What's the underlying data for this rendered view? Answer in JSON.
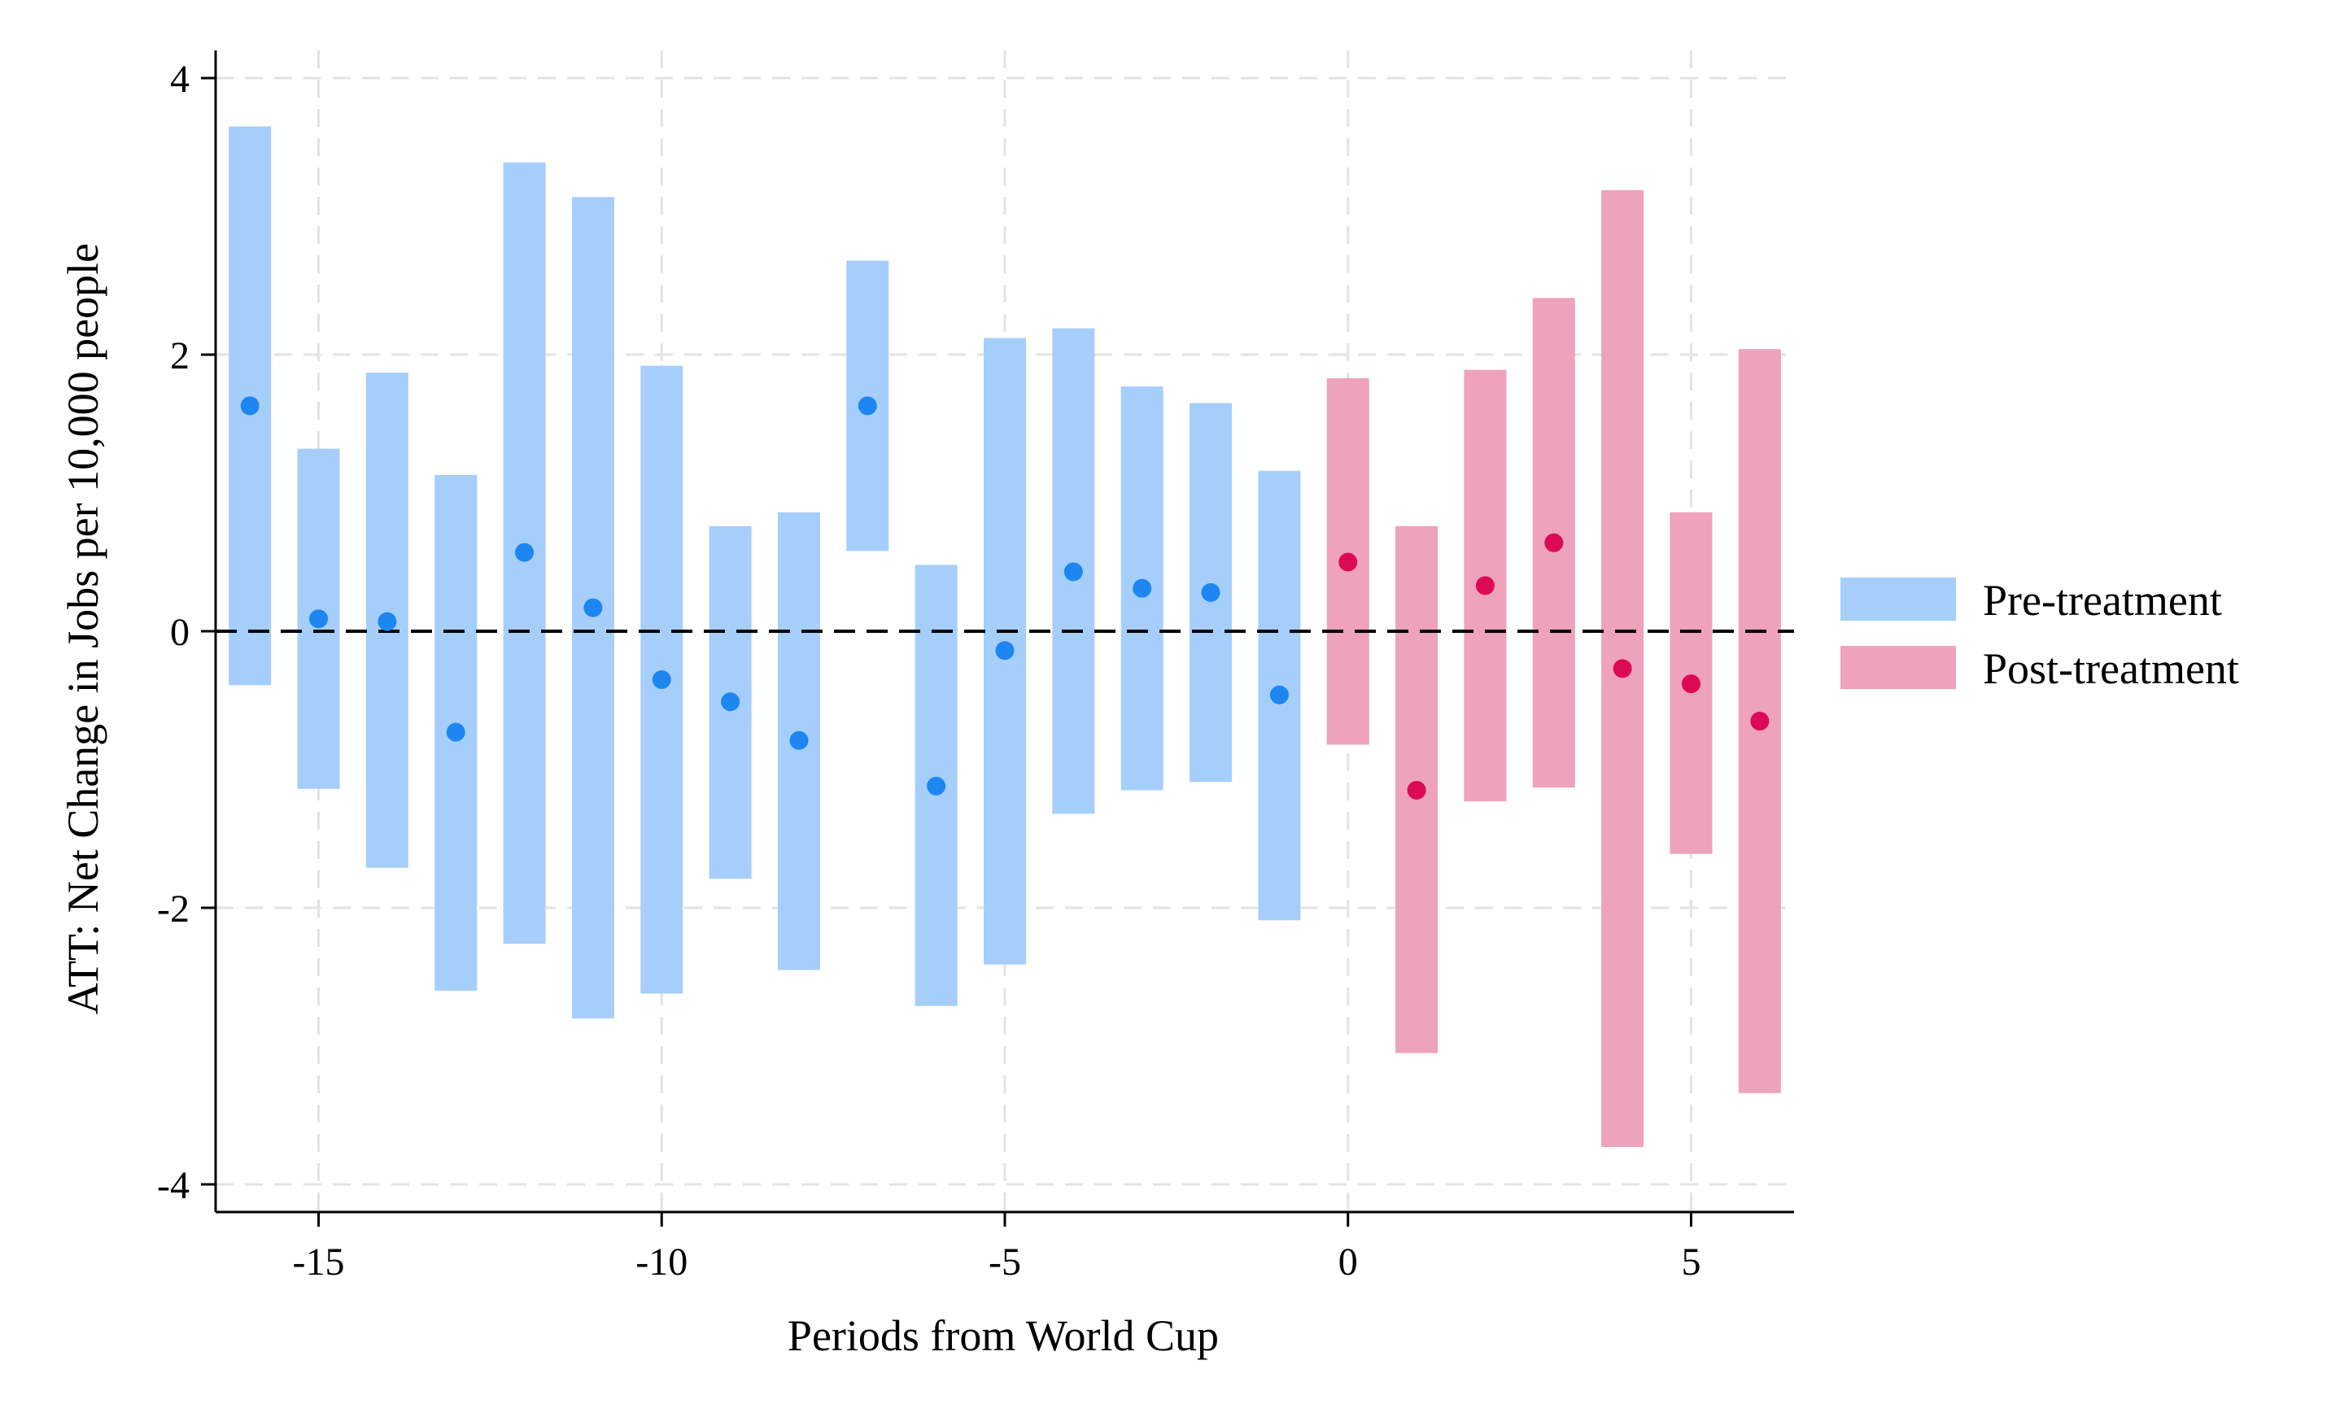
{
  "chart_data": {
    "type": "scatter",
    "subtype": "point estimates with confidence interval bars",
    "xlabel": "Periods from World Cup",
    "ylabel": "ATT: Net Change in Jobs per 10,000 people",
    "xlim": [
      -16.5,
      6.5
    ],
    "ylim": [
      -4.2,
      4.2
    ],
    "x_ticks": [
      -15,
      -10,
      -5,
      0,
      5
    ],
    "x_tick_labels": [
      "-15",
      "-10",
      "-5",
      "0",
      "5"
    ],
    "y_ticks": [
      4,
      2,
      0,
      -2,
      -4
    ],
    "y_tick_labels": [
      "4",
      "2",
      "0",
      "-2",
      "-4"
    ],
    "grid": true,
    "reference_line": {
      "y": 0,
      "style": "dashed"
    },
    "legend_position": "right",
    "series": [
      {
        "name": "Pre-treatment",
        "bar_color": "#A6CEFA",
        "point_color": "#1E86F0",
        "points": [
          {
            "x": -16,
            "y": 1.63,
            "lo": -0.39,
            "hi": 3.65
          },
          {
            "x": -15,
            "y": 0.09,
            "lo": -1.14,
            "hi": 1.32
          },
          {
            "x": -14,
            "y": 0.07,
            "lo": -1.71,
            "hi": 1.87
          },
          {
            "x": -13,
            "y": -0.73,
            "lo": -2.6,
            "hi": 1.13
          },
          {
            "x": -12,
            "y": 0.57,
            "lo": -2.26,
            "hi": 3.39
          },
          {
            "x": -11,
            "y": 0.17,
            "lo": -2.8,
            "hi": 3.14
          },
          {
            "x": -10,
            "y": -0.35,
            "lo": -2.62,
            "hi": 1.92
          },
          {
            "x": -9,
            "y": -0.51,
            "lo": -1.79,
            "hi": 0.76
          },
          {
            "x": -8,
            "y": -0.79,
            "lo": -2.45,
            "hi": 0.86
          },
          {
            "x": -7,
            "y": 1.63,
            "lo": 0.58,
            "hi": 2.68
          },
          {
            "x": -6,
            "y": -1.12,
            "lo": -2.71,
            "hi": 0.48
          },
          {
            "x": -5,
            "y": -0.14,
            "lo": -2.41,
            "hi": 2.12
          },
          {
            "x": -4,
            "y": 0.43,
            "lo": -1.32,
            "hi": 2.19
          },
          {
            "x": -3,
            "y": 0.31,
            "lo": -1.15,
            "hi": 1.77
          },
          {
            "x": -2,
            "y": 0.28,
            "lo": -1.09,
            "hi": 1.65
          },
          {
            "x": -1,
            "y": -0.46,
            "lo": -2.09,
            "hi": 1.16
          }
        ]
      },
      {
        "name": "Post-treatment",
        "bar_color": "#EEA2BB",
        "point_color": "#DC0A55",
        "points": [
          {
            "x": 0,
            "y": 0.5,
            "lo": -0.82,
            "hi": 1.83
          },
          {
            "x": 1,
            "y": -1.15,
            "lo": -3.05,
            "hi": 0.76
          },
          {
            "x": 2,
            "y": 0.33,
            "lo": -1.23,
            "hi": 1.89
          },
          {
            "x": 3,
            "y": 0.64,
            "lo": -1.13,
            "hi": 2.41
          },
          {
            "x": 4,
            "y": -0.27,
            "lo": -3.73,
            "hi": 3.19
          },
          {
            "x": 5,
            "y": -0.38,
            "lo": -1.61,
            "hi": 0.86
          },
          {
            "x": 6,
            "y": -0.65,
            "lo": -3.34,
            "hi": 2.04
          }
        ]
      }
    ]
  }
}
